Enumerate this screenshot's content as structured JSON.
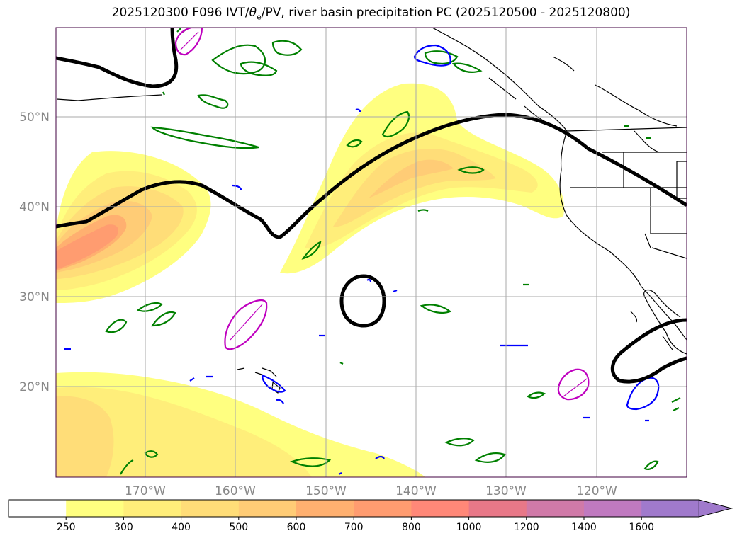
{
  "title": {
    "prefix": "2025120300 F096 IVT/",
    "theta": "θ",
    "theta_sub": "e",
    "suffix": "/PV, river basin precipitation PC (2025120500 - 2025120800)"
  },
  "map": {
    "lon_labels": [
      "170°W",
      "160°W",
      "150°W",
      "140°W",
      "130°W",
      "120°W"
    ],
    "lat_labels": [
      "50°N",
      "40°N",
      "30°N",
      "20°N"
    ],
    "grid_visible": true,
    "colors": {
      "land_outline": "#000000",
      "green_contour": "#008000",
      "blue_contour": "#0000ff",
      "magenta_contour": "#bf00bf",
      "black_contour": "#000000"
    }
  },
  "colorbar": {
    "labels": [
      "250",
      "300",
      "400",
      "500",
      "600",
      "700",
      "800",
      "1000",
      "1200",
      "1400",
      "1600"
    ],
    "colors": [
      "#ffffff",
      "#ffff80",
      "#ffee7a",
      "#ffdd78",
      "#ffcc76",
      "#ffb070",
      "#ff9c70",
      "#ff8878",
      "#e87888",
      "#d07aa8",
      "#c07ac0",
      "#a07acc"
    ],
    "extend": "max"
  }
}
